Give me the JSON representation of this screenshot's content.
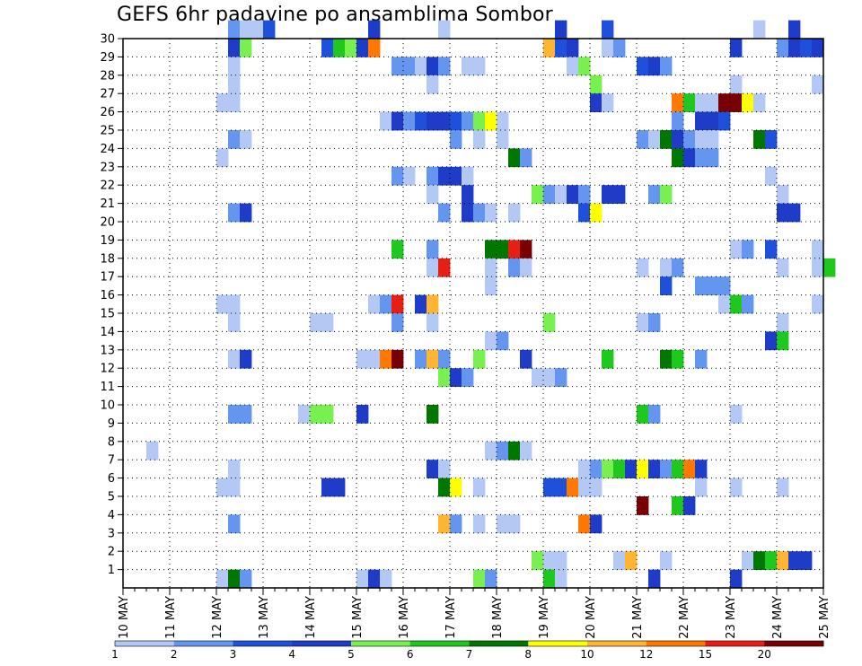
{
  "chart_data": {
    "type": "heatmap",
    "title": "GEFS 6hr padavine po ansamblima Sombor",
    "xlabel": "",
    "ylabel": "",
    "x_ticks": [
      "10 MAY",
      "11 MAY",
      "12 MAY",
      "13 MAY",
      "14 MAY",
      "15 MAY",
      "16 MAY",
      "17 MAY",
      "18 MAY",
      "19 MAY",
      "20 MAY",
      "21 MAY",
      "22 MAY",
      "23 MAY",
      "24 MAY",
      "25 MAY"
    ],
    "y_ticks": [
      "1",
      "2",
      "3",
      "4",
      "5",
      "6",
      "7",
      "8",
      "9",
      "10",
      "11",
      "12",
      "13",
      "14",
      "15",
      "16",
      "17",
      "18",
      "19",
      "20",
      "21",
      "22",
      "23",
      "24",
      "25",
      "26",
      "27",
      "28",
      "29",
      "30"
    ],
    "time_steps_per_day": 4,
    "ylim": [
      0,
      30
    ],
    "grid": true,
    "legend_position": "bottom",
    "levels": [
      "1",
      "2",
      "3",
      "4",
      "5",
      "6",
      "7",
      "8",
      "10",
      "12",
      "15",
      "20"
    ],
    "colors": [
      "#b4c8f5",
      "#6496f0",
      "#1e50dc",
      "#1e3cc8",
      "#78f050",
      "#1ec81e",
      "#007800",
      "#ffff00",
      "#ffb432",
      "#ff7800",
      "#e61e14",
      "#780000"
    ],
    "cells": [
      [
        30,
        9,
        1
      ],
      [
        30,
        10,
        0
      ],
      [
        30,
        11,
        0
      ],
      [
        30,
        12,
        2
      ],
      [
        30,
        21,
        3
      ],
      [
        30,
        27,
        0
      ],
      [
        30,
        37,
        3
      ],
      [
        30,
        41,
        2
      ],
      [
        30,
        54,
        0
      ],
      [
        30,
        57,
        3
      ],
      [
        29,
        9,
        3
      ],
      [
        29,
        10,
        4
      ],
      [
        29,
        17,
        2
      ],
      [
        29,
        18,
        5
      ],
      [
        29,
        19,
        4
      ],
      [
        29,
        20,
        3
      ],
      [
        29,
        21,
        9
      ],
      [
        29,
        36,
        8
      ],
      [
        29,
        37,
        2
      ],
      [
        29,
        38,
        3
      ],
      [
        29,
        41,
        0
      ],
      [
        29,
        42,
        1
      ],
      [
        29,
        52,
        3
      ],
      [
        29,
        56,
        1
      ],
      [
        29,
        57,
        3
      ],
      [
        29,
        58,
        2
      ],
      [
        29,
        59,
        3
      ],
      [
        28,
        9,
        0
      ],
      [
        28,
        23,
        1
      ],
      [
        28,
        24,
        1
      ],
      [
        28,
        25,
        0
      ],
      [
        28,
        26,
        3
      ],
      [
        28,
        27,
        1
      ],
      [
        28,
        29,
        0
      ],
      [
        28,
        30,
        0
      ],
      [
        28,
        38,
        0
      ],
      [
        28,
        39,
        4
      ],
      [
        28,
        44,
        2
      ],
      [
        28,
        45,
        3
      ],
      [
        28,
        46,
        1
      ],
      [
        27,
        9,
        0
      ],
      [
        27,
        26,
        0
      ],
      [
        27,
        40,
        4
      ],
      [
        27,
        52,
        0
      ],
      [
        27,
        59,
        0
      ],
      [
        26,
        8,
        0
      ],
      [
        26,
        9,
        0
      ],
      [
        26,
        40,
        3
      ],
      [
        26,
        41,
        0
      ],
      [
        26,
        47,
        9
      ],
      [
        26,
        48,
        5
      ],
      [
        26,
        49,
        0
      ],
      [
        26,
        50,
        0
      ],
      [
        26,
        51,
        11
      ],
      [
        26,
        52,
        11
      ],
      [
        26,
        53,
        7
      ],
      [
        26,
        54,
        0
      ],
      [
        25,
        22,
        0
      ],
      [
        25,
        23,
        3
      ],
      [
        25,
        24,
        1
      ],
      [
        25,
        25,
        2
      ],
      [
        25,
        26,
        3
      ],
      [
        25,
        27,
        3
      ],
      [
        25,
        28,
        2
      ],
      [
        25,
        29,
        1
      ],
      [
        25,
        30,
        4
      ],
      [
        25,
        31,
        7
      ],
      [
        25,
        32,
        0
      ],
      [
        25,
        47,
        1
      ],
      [
        25,
        49,
        3
      ],
      [
        25,
        50,
        3
      ],
      [
        25,
        51,
        2
      ],
      [
        24,
        9,
        1
      ],
      [
        24,
        10,
        0
      ],
      [
        24,
        28,
        1
      ],
      [
        24,
        30,
        0
      ],
      [
        24,
        32,
        0
      ],
      [
        24,
        44,
        1
      ],
      [
        24,
        45,
        0
      ],
      [
        24,
        46,
        6
      ],
      [
        24,
        47,
        3
      ],
      [
        24,
        48,
        1
      ],
      [
        24,
        49,
        0
      ],
      [
        24,
        50,
        0
      ],
      [
        24,
        54,
        6
      ],
      [
        24,
        55,
        2
      ],
      [
        23,
        8,
        0
      ],
      [
        23,
        33,
        6
      ],
      [
        23,
        34,
        1
      ],
      [
        23,
        47,
        6
      ],
      [
        23,
        48,
        3
      ],
      [
        23,
        49,
        1
      ],
      [
        23,
        50,
        1
      ],
      [
        22,
        23,
        1
      ],
      [
        22,
        24,
        0
      ],
      [
        22,
        26,
        1
      ],
      [
        22,
        27,
        3
      ],
      [
        22,
        28,
        3
      ],
      [
        22,
        29,
        0
      ],
      [
        22,
        55,
        0
      ],
      [
        21,
        26,
        0
      ],
      [
        21,
        29,
        3
      ],
      [
        21,
        35,
        4
      ],
      [
        21,
        36,
        1
      ],
      [
        21,
        37,
        0
      ],
      [
        21,
        38,
        3
      ],
      [
        21,
        39,
        1
      ],
      [
        21,
        41,
        3
      ],
      [
        21,
        42,
        3
      ],
      [
        21,
        45,
        1
      ],
      [
        21,
        46,
        4
      ],
      [
        21,
        56,
        0
      ],
      [
        20,
        9,
        1
      ],
      [
        20,
        10,
        3
      ],
      [
        20,
        27,
        1
      ],
      [
        20,
        29,
        3
      ],
      [
        20,
        30,
        1
      ],
      [
        20,
        31,
        0
      ],
      [
        20,
        33,
        0
      ],
      [
        20,
        39,
        2
      ],
      [
        20,
        40,
        7
      ],
      [
        20,
        56,
        3
      ],
      [
        20,
        57,
        3
      ],
      [
        18,
        23,
        5
      ],
      [
        18,
        26,
        1
      ],
      [
        18,
        31,
        6
      ],
      [
        18,
        32,
        6
      ],
      [
        18,
        33,
        10
      ],
      [
        18,
        34,
        11
      ],
      [
        18,
        52,
        0
      ],
      [
        18,
        53,
        1
      ],
      [
        18,
        55,
        2
      ],
      [
        18,
        59,
        0
      ],
      [
        17,
        26,
        0
      ],
      [
        17,
        27,
        10
      ],
      [
        17,
        31,
        0
      ],
      [
        17,
        33,
        1
      ],
      [
        17,
        34,
        0
      ],
      [
        17,
        44,
        0
      ],
      [
        17,
        46,
        0
      ],
      [
        17,
        47,
        1
      ],
      [
        17,
        56,
        0
      ],
      [
        17,
        59,
        0
      ],
      [
        17,
        60,
        5
      ],
      [
        16,
        31,
        0
      ],
      [
        16,
        46,
        2
      ],
      [
        16,
        49,
        1
      ],
      [
        16,
        50,
        1
      ],
      [
        16,
        51,
        1
      ],
      [
        15,
        8,
        0
      ],
      [
        15,
        9,
        0
      ],
      [
        15,
        21,
        0
      ],
      [
        15,
        22,
        1
      ],
      [
        15,
        23,
        10
      ],
      [
        15,
        25,
        3
      ],
      [
        15,
        26,
        8
      ],
      [
        15,
        51,
        0
      ],
      [
        15,
        52,
        5
      ],
      [
        15,
        53,
        1
      ],
      [
        15,
        59,
        0
      ],
      [
        14,
        9,
        0
      ],
      [
        14,
        16,
        0
      ],
      [
        14,
        17,
        0
      ],
      [
        14,
        23,
        1
      ],
      [
        14,
        26,
        0
      ],
      [
        14,
        36,
        4
      ],
      [
        14,
        44,
        0
      ],
      [
        14,
        45,
        1
      ],
      [
        14,
        56,
        0
      ],
      [
        13,
        31,
        0
      ],
      [
        13,
        32,
        1
      ],
      [
        13,
        55,
        3
      ],
      [
        13,
        56,
        5
      ],
      [
        12,
        9,
        0
      ],
      [
        12,
        10,
        3
      ],
      [
        12,
        20,
        0
      ],
      [
        12,
        21,
        0
      ],
      [
        12,
        22,
        9
      ],
      [
        12,
        23,
        11
      ],
      [
        12,
        25,
        1
      ],
      [
        12,
        26,
        8
      ],
      [
        12,
        27,
        1
      ],
      [
        12,
        30,
        4
      ],
      [
        12,
        34,
        3
      ],
      [
        12,
        41,
        5
      ],
      [
        12,
        46,
        6
      ],
      [
        12,
        47,
        5
      ],
      [
        12,
        49,
        1
      ],
      [
        11,
        27,
        4
      ],
      [
        11,
        28,
        3
      ],
      [
        11,
        29,
        1
      ],
      [
        11,
        35,
        0
      ],
      [
        11,
        36,
        0
      ],
      [
        11,
        37,
        1
      ],
      [
        9,
        9,
        1
      ],
      [
        9,
        10,
        1
      ],
      [
        9,
        15,
        0
      ],
      [
        9,
        16,
        4
      ],
      [
        9,
        17,
        4
      ],
      [
        9,
        20,
        3
      ],
      [
        9,
        26,
        6
      ],
      [
        9,
        44,
        5
      ],
      [
        9,
        45,
        1
      ],
      [
        9,
        52,
        0
      ],
      [
        7,
        2,
        0
      ],
      [
        7,
        31,
        0
      ],
      [
        7,
        32,
        1
      ],
      [
        7,
        33,
        6
      ],
      [
        7,
        34,
        0
      ],
      [
        6,
        9,
        0
      ],
      [
        6,
        26,
        3
      ],
      [
        6,
        27,
        0
      ],
      [
        6,
        39,
        0
      ],
      [
        6,
        40,
        1
      ],
      [
        6,
        41,
        4
      ],
      [
        6,
        42,
        5
      ],
      [
        6,
        43,
        3
      ],
      [
        6,
        44,
        7
      ],
      [
        6,
        45,
        3
      ],
      [
        6,
        46,
        1
      ],
      [
        6,
        47,
        5
      ],
      [
        6,
        48,
        9
      ],
      [
        6,
        49,
        3
      ],
      [
        5,
        8,
        0
      ],
      [
        5,
        9,
        0
      ],
      [
        5,
        17,
        3
      ],
      [
        5,
        18,
        3
      ],
      [
        5,
        27,
        6
      ],
      [
        5,
        28,
        7
      ],
      [
        5,
        30,
        0
      ],
      [
        5,
        36,
        2
      ],
      [
        5,
        37,
        2
      ],
      [
        5,
        38,
        9
      ],
      [
        5,
        39,
        0
      ],
      [
        5,
        40,
        0
      ],
      [
        5,
        49,
        0
      ],
      [
        5,
        52,
        0
      ],
      [
        5,
        56,
        0
      ],
      [
        4,
        44,
        11
      ],
      [
        4,
        47,
        5
      ],
      [
        4,
        48,
        3
      ],
      [
        3,
        9,
        1
      ],
      [
        3,
        27,
        8
      ],
      [
        3,
        28,
        1
      ],
      [
        3,
        30,
        0
      ],
      [
        3,
        32,
        0
      ],
      [
        3,
        33,
        0
      ],
      [
        3,
        39,
        9
      ],
      [
        3,
        40,
        3
      ],
      [
        1,
        35,
        4
      ],
      [
        1,
        36,
        0
      ],
      [
        1,
        37,
        0
      ],
      [
        1,
        42,
        0
      ],
      [
        1,
        43,
        8
      ],
      [
        1,
        46,
        0
      ],
      [
        1,
        53,
        0
      ],
      [
        1,
        54,
        6
      ],
      [
        1,
        55,
        5
      ],
      [
        1,
        56,
        8
      ],
      [
        1,
        57,
        3
      ],
      [
        1,
        58,
        3
      ],
      [
        0,
        8,
        0
      ],
      [
        0,
        9,
        6
      ],
      [
        0,
        10,
        1
      ],
      [
        0,
        20,
        0
      ],
      [
        0,
        21,
        3
      ],
      [
        0,
        22,
        0
      ],
      [
        0,
        30,
        4
      ],
      [
        0,
        31,
        1
      ],
      [
        0,
        36,
        5
      ],
      [
        0,
        37,
        0
      ],
      [
        0,
        45,
        3
      ],
      [
        0,
        52,
        3
      ]
    ]
  }
}
